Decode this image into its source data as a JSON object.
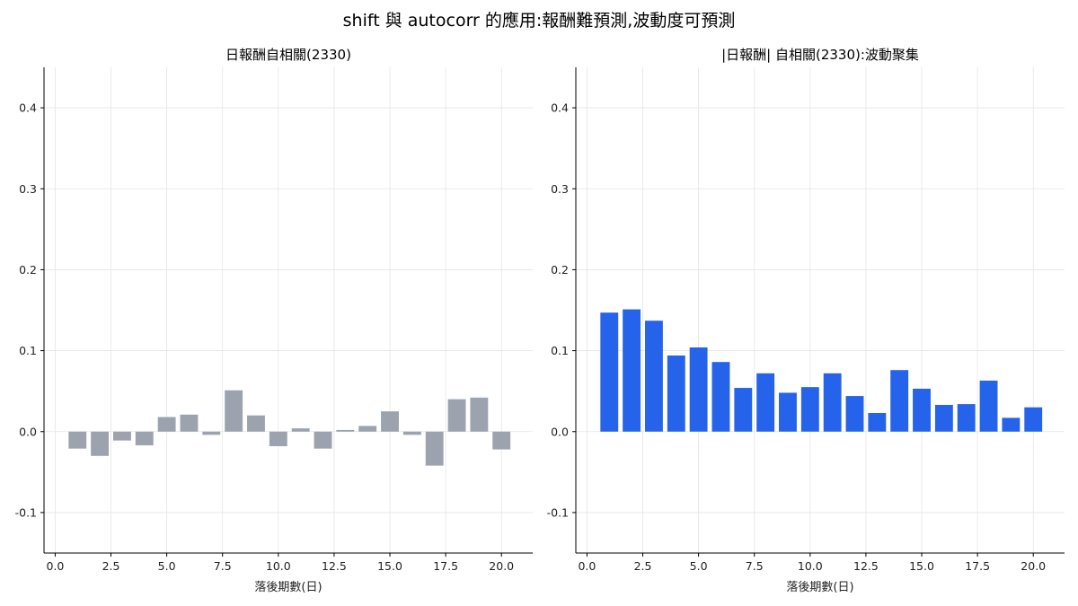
{
  "figure_title": "shift 與 autocorr 的應用:報酬難預測,波動度可預測",
  "colors": {
    "left_bars": "#9ca3af",
    "right_bars": "#2563eb",
    "grid": "#e5e5e5",
    "axis": "#000000"
  },
  "chart_data": [
    {
      "type": "bar",
      "title": "日報酬自相關(2330)",
      "xlabel": "落後期數(日)",
      "ylabel": "",
      "xlim": [
        -0.5,
        21.4
      ],
      "ylim": [
        -0.15,
        0.45
      ],
      "xticks": [
        0.0,
        2.5,
        5.0,
        7.5,
        10.0,
        12.5,
        15.0,
        17.5,
        20.0
      ],
      "yticks": [
        -0.1,
        0.0,
        0.1,
        0.2,
        0.3,
        0.4
      ],
      "grid": true,
      "x": [
        1,
        2,
        3,
        4,
        5,
        6,
        7,
        8,
        9,
        10,
        11,
        12,
        13,
        14,
        15,
        16,
        17,
        18,
        19,
        20
      ],
      "values": [
        -0.021,
        -0.03,
        -0.011,
        -0.017,
        0.018,
        0.021,
        -0.004,
        0.051,
        0.02,
        -0.018,
        0.004,
        -0.021,
        0.002,
        0.007,
        0.025,
        -0.004,
        -0.042,
        0.04,
        0.042,
        -0.022
      ],
      "color": "#9ca3af"
    },
    {
      "type": "bar",
      "title": "|日報酬| 自相關(2330):波動聚集",
      "xlabel": "落後期數(日)",
      "ylabel": "",
      "xlim": [
        -0.5,
        21.4
      ],
      "ylim": [
        -0.15,
        0.45
      ],
      "xticks": [
        0.0,
        2.5,
        5.0,
        7.5,
        10.0,
        12.5,
        15.0,
        17.5,
        20.0
      ],
      "yticks": [
        -0.1,
        0.0,
        0.1,
        0.2,
        0.3,
        0.4
      ],
      "grid": true,
      "x": [
        1,
        2,
        3,
        4,
        5,
        6,
        7,
        8,
        9,
        10,
        11,
        12,
        13,
        14,
        15,
        16,
        17,
        18,
        19,
        20
      ],
      "values": [
        0.147,
        0.151,
        0.137,
        0.094,
        0.104,
        0.086,
        0.054,
        0.072,
        0.048,
        0.055,
        0.072,
        0.044,
        0.023,
        0.076,
        0.053,
        0.033,
        0.034,
        0.063,
        0.017,
        0.03
      ],
      "color": "#2563eb"
    }
  ]
}
